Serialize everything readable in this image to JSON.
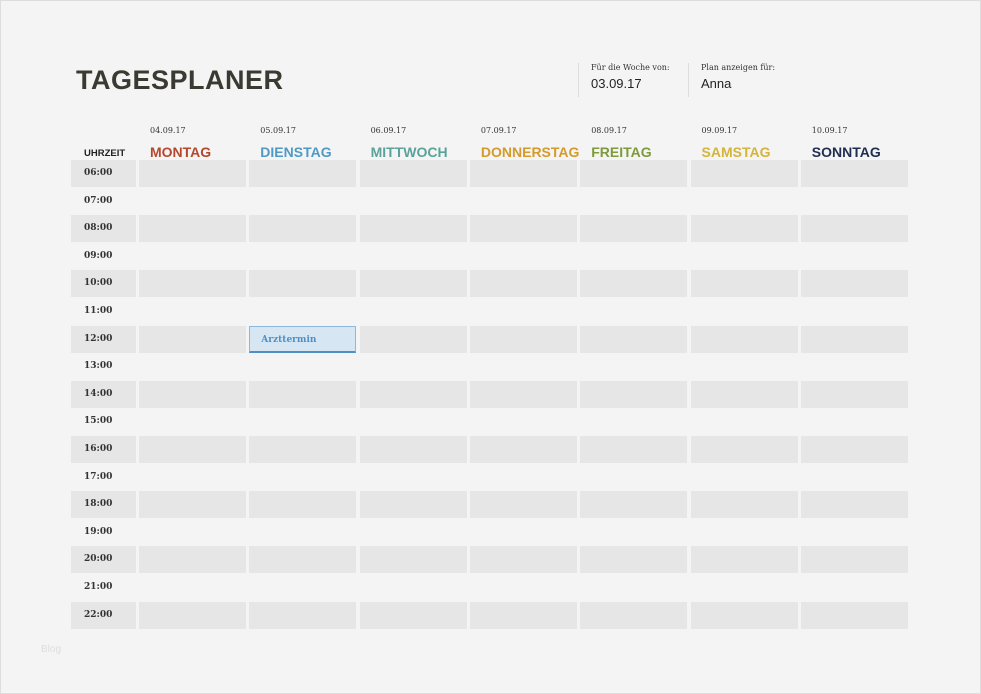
{
  "title": "TAGESPLANER",
  "week": {
    "label": "Für die Woche von:",
    "value": "03.09.17"
  },
  "plan": {
    "label": "Plan anzeigen für:",
    "value": "Anna"
  },
  "time_header": "UHRZEIT",
  "days": [
    {
      "date": "04.09.17",
      "name": "MONTAG",
      "color": "#b5482c"
    },
    {
      "date": "05.09.17",
      "name": "DIENSTAG",
      "color": "#4f9ac4"
    },
    {
      "date": "06.09.17",
      "name": "MITTWOCH",
      "color": "#5aa39a"
    },
    {
      "date": "07.09.17",
      "name": "DONNERSTAG",
      "color": "#d49a2a"
    },
    {
      "date": "08.09.17",
      "name": "FREITAG",
      "color": "#7f9a3a"
    },
    {
      "date": "09.09.17",
      "name": "SAMSTAG",
      "color": "#d4b43a"
    },
    {
      "date": "10.09.17",
      "name": "SONNTAG",
      "color": "#1f2d4e"
    }
  ],
  "times": [
    "06:00",
    "07:00",
    "08:00",
    "09:00",
    "10:00",
    "11:00",
    "12:00",
    "13:00",
    "14:00",
    "15:00",
    "16:00",
    "17:00",
    "18:00",
    "19:00",
    "20:00",
    "21:00",
    "22:00"
  ],
  "appointments": [
    {
      "day": 1,
      "time": "12:00",
      "text": "Arzttermin"
    }
  ],
  "watermark": "Blog"
}
